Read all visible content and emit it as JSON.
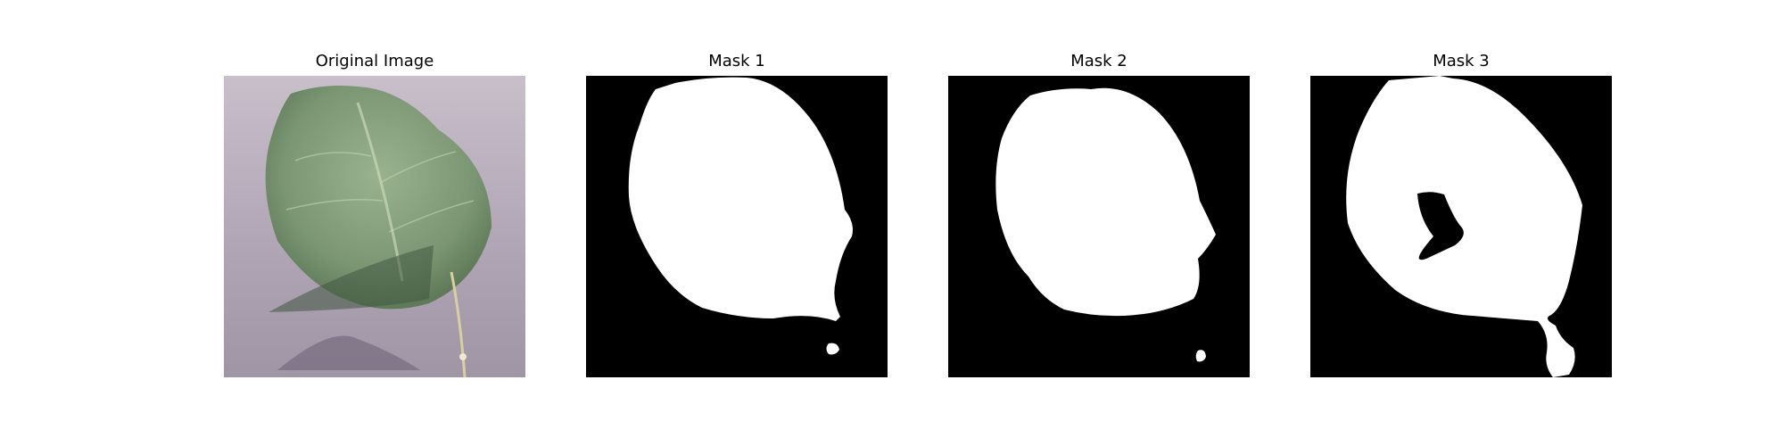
{
  "figure": {
    "panels": [
      {
        "title": "Original Image",
        "content": "leaf-photo"
      },
      {
        "title": "Mask 1",
        "content": "binary-mask"
      },
      {
        "title": "Mask 2",
        "content": "binary-mask"
      },
      {
        "title": "Mask 3",
        "content": "binary-mask"
      }
    ],
    "colors": {
      "background": "#ffffff",
      "mask_background": "#000000",
      "mask_foreground": "#ffffff",
      "leaf": "#7f9a76",
      "surface": "#b7aebd"
    }
  }
}
